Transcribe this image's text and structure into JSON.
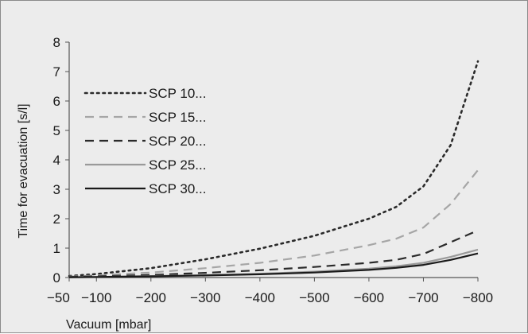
{
  "chart_data": {
    "type": "line",
    "xlabel": "Vacuum  [mbar]",
    "ylabel": "Time for evacuation [s/l]",
    "x": [
      -50,
      -100,
      -200,
      -300,
      -400,
      -500,
      -600,
      -650,
      -700,
      -750,
      -800
    ],
    "x_tick_values": [
      -50,
      -100,
      -200,
      -300,
      -400,
      -500,
      -600,
      -700,
      -800
    ],
    "x_tick_labels": [
      "−50",
      "−100",
      "−200",
      "−300",
      "−400",
      "−500",
      "−600",
      "−700",
      "−800"
    ],
    "xlim": [
      -50,
      -800
    ],
    "ylim": [
      0,
      8
    ],
    "y_ticks": [
      0,
      1,
      2,
      3,
      4,
      5,
      6,
      7,
      8
    ],
    "grid": false,
    "legend_position": "upper-left",
    "series": [
      {
        "name": "SCP 10...",
        "color": "#2a2a2a",
        "style": "dotted",
        "values": [
          0.05,
          0.12,
          0.32,
          0.62,
          0.98,
          1.42,
          2.0,
          2.4,
          3.1,
          4.5,
          7.35
        ]
      },
      {
        "name": "SCP 15...",
        "color": "#a6a6a6",
        "style": "dashed",
        "values": [
          0.03,
          0.07,
          0.17,
          0.32,
          0.5,
          0.75,
          1.1,
          1.32,
          1.7,
          2.5,
          3.65
        ]
      },
      {
        "name": "SCP 20...",
        "color": "#2a2a2a",
        "style": "dashed",
        "values": [
          0.02,
          0.04,
          0.09,
          0.16,
          0.25,
          0.36,
          0.5,
          0.6,
          0.8,
          1.2,
          1.6
        ]
      },
      {
        "name": "SCP 25...",
        "color": "#9a9a9a",
        "style": "solid",
        "values": [
          0.01,
          0.02,
          0.05,
          0.08,
          0.13,
          0.2,
          0.3,
          0.38,
          0.5,
          0.7,
          0.95
        ]
      },
      {
        "name": "SCP 30...",
        "color": "#1a1a1a",
        "style": "solid",
        "values": [
          0.01,
          0.02,
          0.04,
          0.07,
          0.11,
          0.17,
          0.26,
          0.33,
          0.43,
          0.6,
          0.82
        ]
      }
    ]
  }
}
